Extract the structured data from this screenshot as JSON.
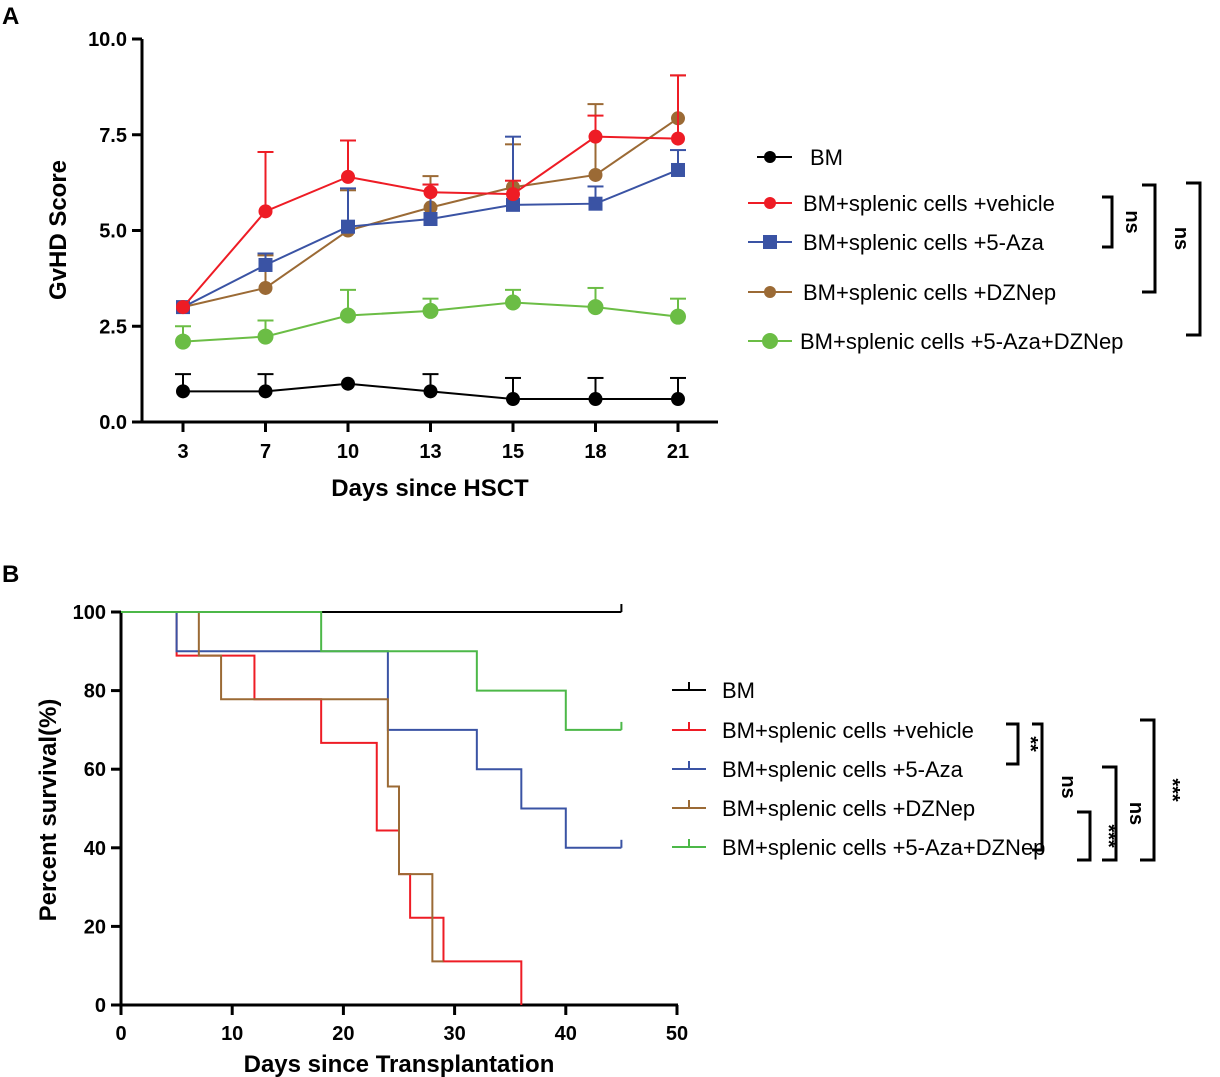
{
  "chart_data": [
    {
      "panel": "A",
      "type": "line",
      "xlabel": "Days since HSCT",
      "ylabel": "GvHD Score",
      "categories": [
        "3",
        "7",
        "10",
        "13",
        "15",
        "18",
        "21"
      ],
      "yticks": [
        "0.0",
        "2.5",
        "5.0",
        "7.5",
        "10.0"
      ],
      "ylim": [
        0,
        10
      ],
      "series": [
        {
          "name": "BM",
          "color": "#000000",
          "marker": "circle",
          "values": [
            0.8,
            0.8,
            1.0,
            0.8,
            0.6,
            0.6,
            0.6
          ],
          "err_upper": [
            1.25,
            1.25,
            1.0,
            1.25,
            1.15,
            1.15,
            1.15
          ]
        },
        {
          "name": "BM+splenic cells +vehicle",
          "color": "#ee1c25",
          "marker": "circle",
          "values": [
            3.0,
            5.5,
            6.4,
            6.0,
            5.95,
            7.45,
            7.4
          ],
          "err_upper": [
            3.0,
            7.05,
            7.35,
            6.2,
            6.3,
            8.0,
            9.05
          ]
        },
        {
          "name": "BM+splenic cells +5-Aza",
          "color": "#3a53a4",
          "marker": "square",
          "values": [
            3.0,
            4.1,
            5.1,
            5.3,
            5.67,
            5.7,
            6.58
          ],
          "err_upper": [
            3.0,
            4.4,
            6.1,
            6.2,
            7.45,
            6.15,
            7.1
          ]
        },
        {
          "name": "BM+splenic cells +DZNep",
          "color": "#9b6a35",
          "marker": "circle",
          "values": [
            3.0,
            3.5,
            5.0,
            5.6,
            6.13,
            6.45,
            7.93
          ],
          "err_upper": [
            3.0,
            4.35,
            6.05,
            6.42,
            7.25,
            8.3,
            9.05
          ]
        },
        {
          "name": "BM+splenic cells +5-Aza+DZNep",
          "color": "#6bbd45",
          "marker": "bigcircle",
          "values": [
            2.1,
            2.23,
            2.78,
            2.9,
            3.12,
            3.0,
            2.75
          ],
          "err_upper": [
            2.5,
            2.65,
            3.45,
            3.22,
            3.45,
            3.5,
            3.22
          ]
        }
      ],
      "significance": [
        {
          "label": "ns"
        },
        {
          "label": "ns"
        },
        {
          "label": "**"
        }
      ]
    },
    {
      "panel": "B",
      "type": "line",
      "subtype": "kaplan-meier",
      "xlabel": "Days since Transplantation",
      "ylabel": "Percent survival(%)",
      "xticks": [
        "0",
        "10",
        "20",
        "30",
        "40",
        "50"
      ],
      "yticks": [
        "0",
        "20",
        "40",
        "60",
        "80",
        "100"
      ],
      "xlim": [
        0,
        50
      ],
      "ylim": [
        0,
        100
      ],
      "series": [
        {
          "name": "BM",
          "color": "#000000",
          "steps": [
            [
              0,
              100
            ],
            [
              45,
              100
            ]
          ]
        },
        {
          "name": "BM+splenic cells +vehicle",
          "color": "#ee1c25",
          "steps": [
            [
              0,
              100
            ],
            [
              5,
              88.9
            ],
            [
              12,
              77.8
            ],
            [
              18,
              66.7
            ],
            [
              23,
              44.4
            ],
            [
              25,
              33.3
            ],
            [
              26,
              22.2
            ],
            [
              29,
              11.1
            ],
            [
              36,
              0
            ]
          ]
        },
        {
          "name": "BM+splenic cells +5-Aza",
          "color": "#3a53a4",
          "steps": [
            [
              0,
              100
            ],
            [
              5,
              90
            ],
            [
              24,
              70
            ],
            [
              32,
              60
            ],
            [
              36,
              50
            ],
            [
              40,
              40
            ],
            [
              45,
              40
            ]
          ]
        },
        {
          "name": "BM+splenic cells +DZNep",
          "color": "#9b6a35",
          "steps": [
            [
              0,
              100
            ],
            [
              7,
              88.9
            ],
            [
              9,
              77.8
            ],
            [
              24,
              55.6
            ],
            [
              25,
              33.3
            ],
            [
              28,
              11.1
            ],
            [
              29,
              11.1
            ]
          ]
        },
        {
          "name": "BM+splenic cells +5-Aza+DZNep",
          "color": "#4cb848",
          "steps": [
            [
              0,
              100
            ],
            [
              18,
              90
            ],
            [
              32,
              80
            ],
            [
              40,
              70
            ],
            [
              45,
              70
            ]
          ]
        }
      ],
      "significance": [
        {
          "label": "**"
        },
        {
          "label": "ns"
        },
        {
          "label": "ns"
        },
        {
          "label": "***"
        },
        {
          "label": "***"
        }
      ]
    }
  ],
  "panel_labels": [
    "A",
    "B"
  ]
}
